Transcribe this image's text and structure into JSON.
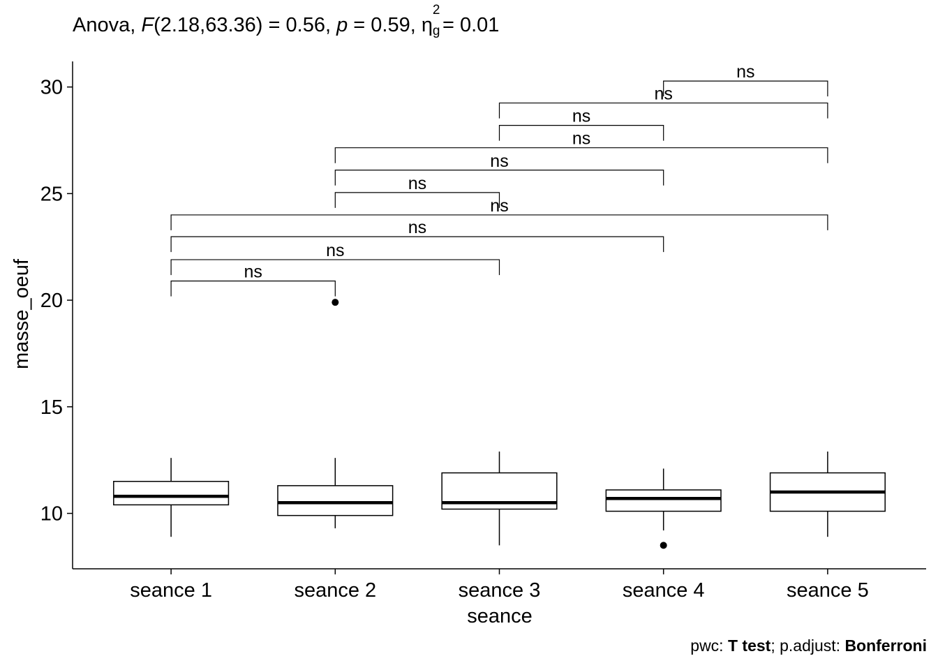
{
  "title": {
    "test": "Anova,",
    "f_symbol": "F",
    "f_args": "(2.18,63.36) = 0.56,",
    "p_symbol": "p",
    "p_value": "= 0.59,",
    "eta_symbol": "η",
    "eta_sup": "2",
    "eta_sub": "g",
    "eta_value": "= 0.01"
  },
  "caption": {
    "pwc_label": "pwc:",
    "pwc_value": "T test",
    "sep": ";",
    "adjust_label": "p.adjust:",
    "adjust_value": "Bonferroni"
  },
  "chart_data": {
    "type": "boxplot",
    "xlabel": "seance",
    "ylabel": "masse_oeuf",
    "ylim": [
      7.4,
      31.2
    ],
    "yticks": [
      10,
      15,
      20,
      25,
      30
    ],
    "ytick_labels": [
      "10",
      "15",
      "20",
      "25",
      "30"
    ],
    "categories": [
      "seance 1",
      "seance 2",
      "seance 3",
      "seance 4",
      "seance 5"
    ],
    "boxes": [
      {
        "category": "seance 1",
        "whisker_low": 8.9,
        "q1": 10.4,
        "median": 10.8,
        "q3": 11.5,
        "whisker_high": 12.6,
        "outliers": []
      },
      {
        "category": "seance 2",
        "whisker_low": 9.3,
        "q1": 9.9,
        "median": 10.5,
        "q3": 11.3,
        "whisker_high": 12.6,
        "outliers": [
          19.9
        ]
      },
      {
        "category": "seance 3",
        "whisker_low": 8.5,
        "q1": 10.2,
        "median": 10.5,
        "q3": 11.9,
        "whisker_high": 12.9,
        "outliers": []
      },
      {
        "category": "seance 4",
        "whisker_low": 9.2,
        "q1": 10.1,
        "median": 10.7,
        "q3": 11.1,
        "whisker_high": 12.1,
        "outliers": [
          8.5
        ]
      },
      {
        "category": "seance 5",
        "whisker_low": 8.9,
        "q1": 10.1,
        "median": 11.0,
        "q3": 11.9,
        "whisker_high": 12.9,
        "outliers": []
      }
    ],
    "comparisons": [
      {
        "group1": "seance 1",
        "group2": "seance 2",
        "y": 20.9,
        "label": "ns"
      },
      {
        "group1": "seance 1",
        "group2": "seance 3",
        "y": 21.9,
        "label": "ns"
      },
      {
        "group1": "seance 1",
        "group2": "seance 4",
        "y": 22.98,
        "label": "ns"
      },
      {
        "group1": "seance 1",
        "group2": "seance 5",
        "y": 24.0,
        "label": "ns"
      },
      {
        "group1": "seance 2",
        "group2": "seance 3",
        "y": 25.05,
        "label": "ns"
      },
      {
        "group1": "seance 2",
        "group2": "seance 4",
        "y": 26.1,
        "label": "ns"
      },
      {
        "group1": "seance 2",
        "group2": "seance 5",
        "y": 27.15,
        "label": "ns"
      },
      {
        "group1": "seance 3",
        "group2": "seance 4",
        "y": 28.2,
        "label": "ns"
      },
      {
        "group1": "seance 3",
        "group2": "seance 5",
        "y": 29.25,
        "label": "ns"
      },
      {
        "group1": "seance 4",
        "group2": "seance 5",
        "y": 30.28,
        "label": "ns"
      }
    ]
  }
}
